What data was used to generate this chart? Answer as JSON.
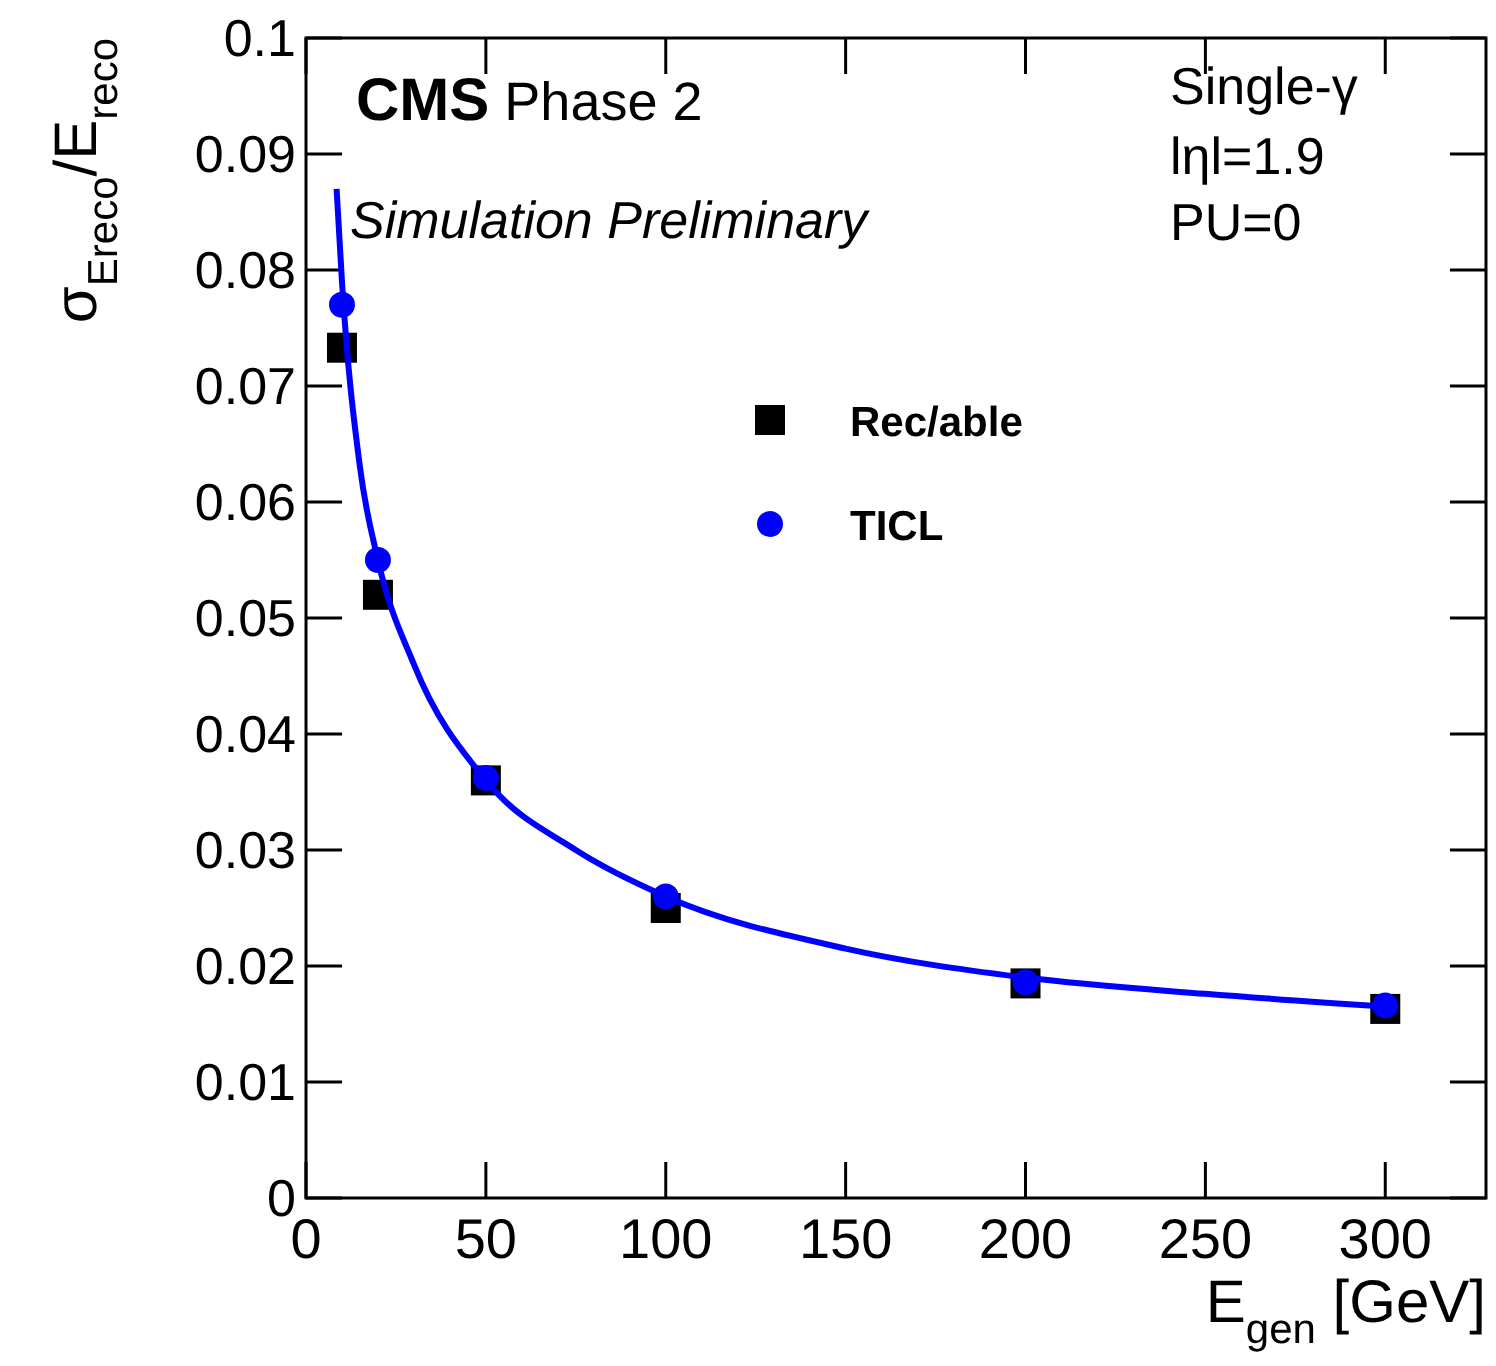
{
  "chart_data": {
    "type": "scatter",
    "xlabel": "E$_{gen}$ [GeV]",
    "ylabel": "σ$_{Ereco}$/E$_{reco}$",
    "xlim": [
      0,
      328
    ],
    "ylim": [
      0,
      0.1
    ],
    "xticks": [
      0,
      50,
      100,
      150,
      200,
      250,
      300
    ],
    "yticks": [
      0,
      0.01,
      0.02,
      0.03,
      0.04,
      0.05,
      0.06,
      0.07,
      0.08,
      0.09,
      0.1
    ],
    "grid": false,
    "legend": "top",
    "annotations": [
      "CMS Phase 2",
      "Simulation Preliminary",
      "Single-γ",
      "lηl=1.9",
      "PU=0"
    ],
    "series": [
      {
        "name": "Rec/able",
        "color": "#000000",
        "marker": "square",
        "x": [
          10,
          20,
          50,
          100,
          200,
          300
        ],
        "values": [
          0.0733,
          0.052,
          0.036,
          0.025,
          0.0185,
          0.0163
        ]
      },
      {
        "name": "TICL",
        "color": "#0000ff",
        "marker": "circle",
        "x": [
          10,
          20,
          50,
          100,
          200,
          300
        ],
        "values": [
          0.077,
          0.055,
          0.0362,
          0.026,
          0.0186,
          0.0166
        ]
      },
      {
        "type": "line",
        "color": "#0000ff",
        "x": [
          8.5,
          10,
          15,
          20,
          30,
          50,
          75,
          100,
          150,
          200,
          250,
          300
        ],
        "values": [
          0.087,
          0.079,
          0.063,
          0.055,
          0.046,
          0.036,
          0.03,
          0.026,
          0.0215,
          0.019,
          0.0176,
          0.0165
        ]
      }
    ]
  }
}
